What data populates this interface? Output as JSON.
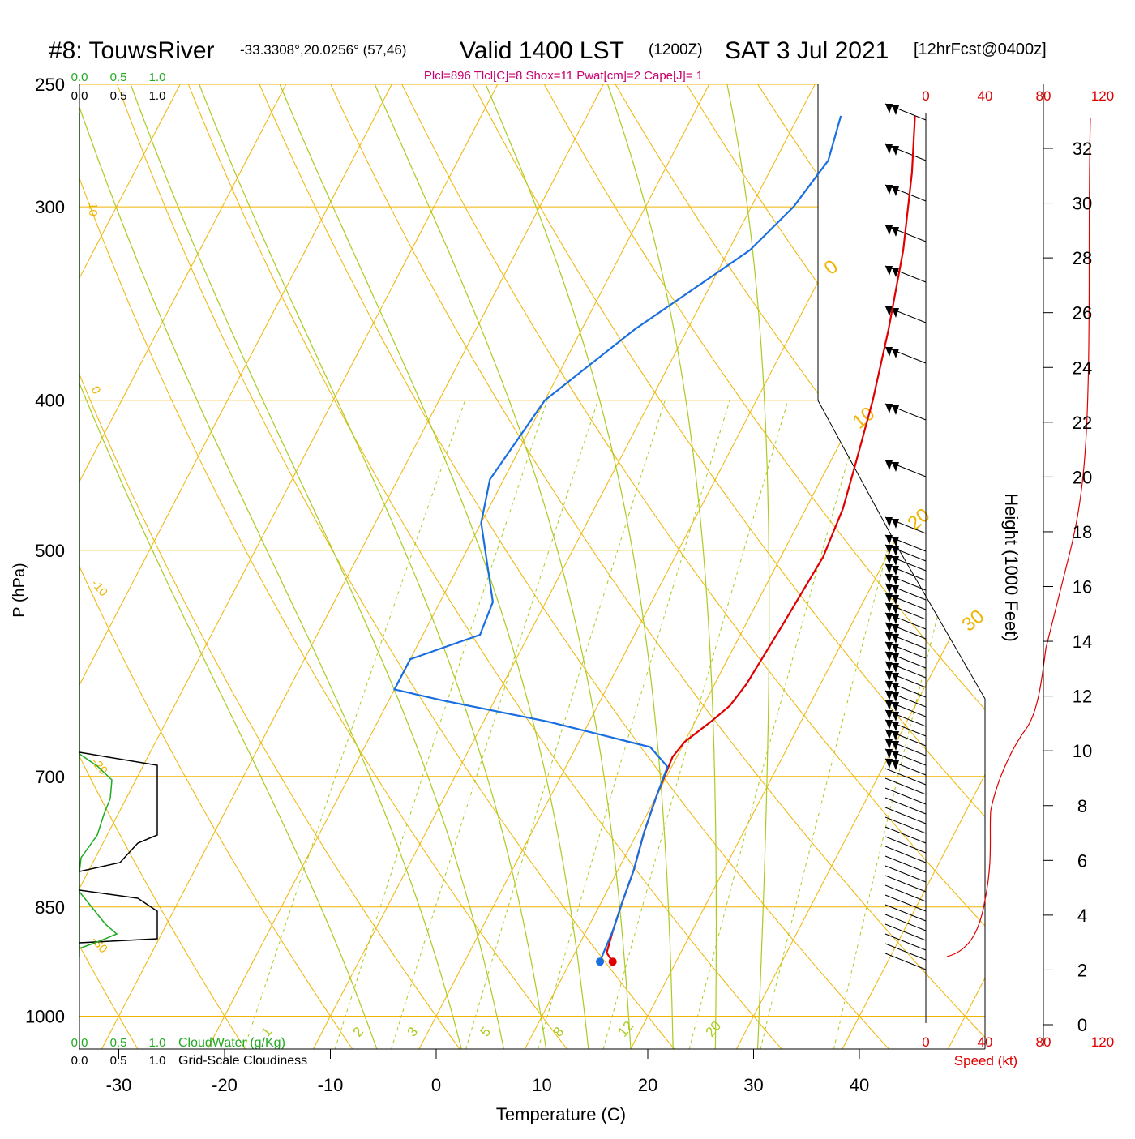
{
  "header": {
    "station": "#8: TouwsRiver",
    "coords": "-33.3308°,20.0256° (57,46)",
    "valid": "Valid 1400 LST",
    "zulu": "(1200Z)",
    "date": "SAT 3 Jul 2021",
    "forecast": "[12hrFcst@0400z]",
    "indices": "Plcl=896 Tlcl[C]=8 Shox=11 Pwat[cm]=2 Cape[J]= 1"
  },
  "colors": {
    "temperature": "#e00000",
    "dewpoint": "#1a6fe0",
    "isotherm": "#f0b400",
    "dry_adiabat": "#f0b400",
    "moist_adiabat": "#a8cc20",
    "mixing_ratio": "#a8cc20",
    "cloud_water": "#20aa20",
    "cloudiness": "#000000",
    "speed": "#e00000"
  },
  "chart_data": {
    "type": "line",
    "xlabel": "Temperature (C)",
    "ylabel": "P (hPa)",
    "y2label": "Height (1000 Feet)",
    "xlim": [
      -34,
      46
    ],
    "ylim_hpa": [
      1050,
      250
    ],
    "x_ticks": [
      "-30",
      "-20",
      "-10",
      "0",
      "10",
      "20",
      "30",
      "40"
    ],
    "pressure_ticks": [
      "250",
      "300",
      "400",
      "500",
      "700",
      "850",
      "1000"
    ],
    "height_ticks": [
      "0",
      "2",
      "4",
      "6",
      "8",
      "10",
      "12",
      "14",
      "16",
      "18",
      "20",
      "22",
      "24",
      "26",
      "28",
      "30",
      "32"
    ],
    "dry_adiabat_labels": [
      "10",
      "0",
      "-10",
      "-20",
      "-30",
      "0",
      "10",
      "20",
      "30"
    ],
    "mixing_ratio_labels": [
      "1",
      "2",
      "3",
      "5",
      "8",
      "12",
      "20"
    ],
    "series": [
      {
        "name": "Temperature",
        "points": [
          [
            14,
            922
          ],
          [
            13,
            910
          ],
          [
            12.5,
            880
          ],
          [
            12,
            845
          ],
          [
            11.5,
            805
          ],
          [
            10.6,
            760
          ],
          [
            10,
            720
          ],
          [
            9.6,
            680
          ],
          [
            10,
            665
          ],
          [
            11.5,
            645
          ],
          [
            12.5,
            630
          ],
          [
            13,
            610
          ],
          [
            13.5,
            560
          ],
          [
            14,
            505
          ],
          [
            13.5,
            470
          ],
          [
            12.5,
            440
          ],
          [
            11,
            400
          ],
          [
            9,
            360
          ],
          [
            6.5,
            320
          ],
          [
            3.5,
            285
          ],
          [
            1,
            262
          ]
        ]
      },
      {
        "name": "Dewpoint",
        "points": [
          [
            12.8,
            922
          ],
          [
            12.7,
            910
          ],
          [
            12.5,
            880
          ],
          [
            12,
            845
          ],
          [
            11.5,
            805
          ],
          [
            10.6,
            760
          ],
          [
            10,
            720
          ],
          [
            9.6,
            690
          ],
          [
            7,
            670
          ],
          [
            -4,
            645
          ],
          [
            -15,
            625
          ],
          [
            -20,
            615
          ],
          [
            -20,
            588
          ],
          [
            -14.6,
            567
          ],
          [
            -15,
            540
          ],
          [
            -20,
            480
          ],
          [
            -21.3,
            450
          ],
          [
            -20,
            400
          ],
          [
            -15,
            360
          ],
          [
            -8,
            320
          ],
          [
            -6,
            300
          ],
          [
            -5,
            280
          ],
          [
            -6,
            262
          ]
        ]
      }
    ],
    "cloud_panel": {
      "top_label_green": [
        "0.0",
        "0.5",
        "1.0"
      ],
      "top_label_black": [
        "0.0",
        "0.5",
        "1.0"
      ],
      "bottom_label_green": [
        "0.0",
        "0.5",
        "1.0"
      ],
      "bottom_label_black": [
        "0.0",
        "0.5",
        "1.0"
      ],
      "cloud_water_label": "CloudWater (g/Kg)",
      "cloudiness_label": "Grid-Scale Cloudiness"
    },
    "wind_panel": {
      "speed_label": "Speed (kt)",
      "speed_ticks": [
        "0",
        "40",
        "80",
        "120"
      ]
    }
  }
}
